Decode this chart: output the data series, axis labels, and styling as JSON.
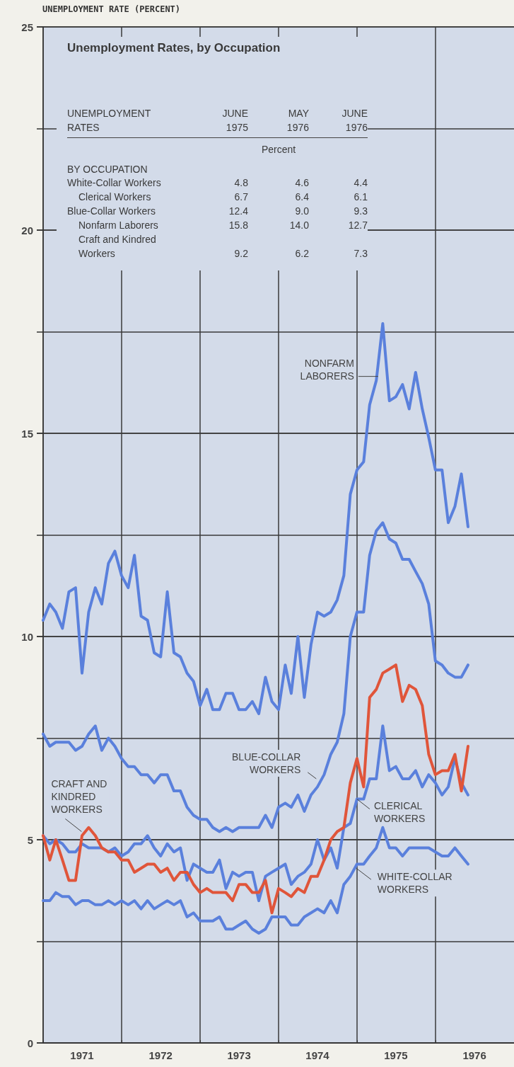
{
  "chart_data": [
    {
      "type": "line",
      "title": "Unemployment Rates, by Occupation",
      "ylabel": "UNEMPLOYMENT RATE (PERCENT)",
      "x": [
        "1971-01",
        "1971-02",
        "1971-03",
        "1971-04",
        "1971-05",
        "1971-06",
        "1971-07",
        "1971-08",
        "1971-09",
        "1971-10",
        "1971-11",
        "1971-12",
        "1972-01",
        "1972-02",
        "1972-03",
        "1972-04",
        "1972-05",
        "1972-06",
        "1972-07",
        "1972-08",
        "1972-09",
        "1972-10",
        "1972-11",
        "1972-12",
        "1973-01",
        "1973-02",
        "1973-03",
        "1973-04",
        "1973-05",
        "1973-06",
        "1973-07",
        "1973-08",
        "1973-09",
        "1973-10",
        "1973-11",
        "1973-12",
        "1974-01",
        "1974-02",
        "1974-03",
        "1974-04",
        "1974-05",
        "1974-06",
        "1974-07",
        "1974-08",
        "1974-09",
        "1974-10",
        "1974-11",
        "1974-12",
        "1975-01",
        "1975-02",
        "1975-03",
        "1975-04",
        "1975-05",
        "1975-06",
        "1975-07",
        "1975-08",
        "1975-09",
        "1975-10",
        "1975-11",
        "1975-12",
        "1976-01",
        "1976-02",
        "1976-03",
        "1976-04",
        "1976-05",
        "1976-06"
      ],
      "xlim": [
        "1971",
        "1977"
      ],
      "xticks": [
        {
          "value": "1971",
          "label": null
        },
        {
          "value": "1971-07",
          "label": "1971"
        },
        {
          "value": "1972",
          "label": null
        },
        {
          "value": "1972-07",
          "label": "1972"
        },
        {
          "value": "1973",
          "label": null
        },
        {
          "value": "1973-07",
          "label": "1973"
        },
        {
          "value": "1974",
          "label": null
        },
        {
          "value": "1974-07",
          "label": "1974"
        },
        {
          "value": "1975",
          "label": null
        },
        {
          "value": "1975-07",
          "label": "1975"
        },
        {
          "value": "1976",
          "label": null
        },
        {
          "value": "1976-07",
          "label": "1976"
        }
      ],
      "ylim": [
        0,
        25
      ],
      "yticks": [
        0,
        {
          "value": 2.5,
          "label": null
        },
        5,
        {
          "value": 7.5,
          "label": null
        },
        10,
        {
          "value": 12.5,
          "label": null
        },
        15,
        {
          "value": 17.5,
          "label": null
        },
        20,
        {
          "value": 22.5,
          "label": null
        },
        25
      ],
      "grid": true,
      "marker": "none",
      "line_style": "solid",
      "series": [
        {
          "name": "NONFARM\nLABORERS",
          "color": "#5a80dc",
          "values": [
            10.4,
            10.8,
            10.6,
            10.2,
            11.1,
            11.2,
            9.1,
            10.6,
            11.2,
            10.8,
            11.8,
            12.1,
            11.5,
            11.2,
            12.0,
            10.5,
            10.4,
            9.6,
            9.5,
            11.1,
            9.6,
            9.5,
            9.1,
            8.9,
            8.3,
            8.7,
            8.2,
            8.2,
            8.6,
            8.6,
            8.2,
            8.2,
            8.4,
            8.1,
            9.0,
            8.4,
            8.2,
            9.3,
            8.6,
            10.0,
            8.5,
            9.8,
            10.6,
            10.5,
            10.6,
            10.9,
            11.5,
            13.5,
            14.1,
            14.3,
            15.7,
            16.3,
            17.7,
            15.8,
            15.9,
            16.2,
            15.6,
            16.5,
            15.6,
            14.9,
            14.1,
            14.1,
            12.8,
            13.2,
            14.0,
            12.7
          ]
        },
        {
          "name": "BLUE-COLLAR\nWORKERS",
          "color": "#5a80dc",
          "values": [
            7.6,
            7.3,
            7.4,
            7.4,
            7.4,
            7.2,
            7.3,
            7.6,
            7.8,
            7.2,
            7.5,
            7.3,
            7.0,
            6.8,
            6.8,
            6.6,
            6.6,
            6.4,
            6.6,
            6.6,
            6.2,
            6.2,
            5.8,
            5.6,
            5.5,
            5.5,
            5.3,
            5.2,
            5.3,
            5.2,
            5.3,
            5.3,
            5.3,
            5.3,
            5.6,
            5.3,
            5.8,
            5.9,
            5.8,
            6.1,
            5.7,
            6.1,
            6.3,
            6.6,
            7.1,
            7.4,
            8.1,
            10.0,
            10.6,
            10.6,
            12.0,
            12.6,
            12.8,
            12.4,
            12.3,
            11.9,
            11.9,
            11.6,
            11.3,
            10.8,
            9.4,
            9.3,
            9.1,
            9.0,
            9.0,
            9.3
          ]
        },
        {
          "name": "CLERICAL\nWORKERS",
          "color": "#5a80dc",
          "values": [
            5.1,
            4.9,
            5.0,
            4.9,
            4.7,
            4.7,
            4.9,
            4.8,
            4.8,
            4.8,
            4.7,
            4.8,
            4.6,
            4.7,
            4.9,
            4.9,
            5.1,
            4.8,
            4.6,
            4.9,
            4.7,
            4.8,
            4.0,
            4.4,
            4.3,
            4.2,
            4.2,
            4.5,
            3.8,
            4.2,
            4.1,
            4.2,
            4.2,
            3.5,
            4.1,
            4.2,
            4.3,
            4.4,
            3.9,
            4.1,
            4.2,
            4.4,
            5.0,
            4.5,
            4.8,
            4.3,
            5.3,
            5.4,
            6.0,
            6.0,
            6.5,
            6.5,
            7.8,
            6.7,
            6.8,
            6.5,
            6.5,
            6.7,
            6.3,
            6.6,
            6.4,
            6.1,
            6.3,
            7.0,
            6.4,
            6.1
          ]
        },
        {
          "name": "WHITE-COLLAR\nWORKERS",
          "color": "#5a80dc",
          "values": [
            3.5,
            3.5,
            3.7,
            3.6,
            3.6,
            3.4,
            3.5,
            3.5,
            3.4,
            3.4,
            3.5,
            3.4,
            3.5,
            3.4,
            3.5,
            3.3,
            3.5,
            3.3,
            3.4,
            3.5,
            3.4,
            3.5,
            3.1,
            3.2,
            3.0,
            3.0,
            3.0,
            3.1,
            2.8,
            2.8,
            2.9,
            3.0,
            2.8,
            2.7,
            2.8,
            3.1,
            3.1,
            3.1,
            2.9,
            2.9,
            3.1,
            3.2,
            3.3,
            3.2,
            3.5,
            3.2,
            3.9,
            4.1,
            4.4,
            4.4,
            4.6,
            4.8,
            5.3,
            4.8,
            4.8,
            4.6,
            4.8,
            4.8,
            4.8,
            4.8,
            4.7,
            4.6,
            4.6,
            4.8,
            4.6,
            4.4
          ]
        },
        {
          "name": "CRAFT AND\nKINDRED\nWORKERS",
          "color": "#e0553a",
          "values": [
            5.1,
            4.5,
            5.0,
            4.5,
            4.0,
            4.0,
            5.1,
            5.3,
            5.1,
            4.8,
            4.7,
            4.7,
            4.5,
            4.5,
            4.2,
            4.3,
            4.4,
            4.4,
            4.2,
            4.3,
            4.0,
            4.2,
            4.2,
            3.9,
            3.7,
            3.8,
            3.7,
            3.7,
            3.7,
            3.5,
            3.9,
            3.9,
            3.7,
            3.7,
            4.0,
            3.2,
            3.8,
            3.7,
            3.6,
            3.8,
            3.7,
            4.1,
            4.1,
            4.5,
            5.0,
            5.2,
            5.3,
            6.4,
            7.0,
            6.3,
            8.5,
            8.7,
            9.1,
            9.2,
            9.3,
            8.4,
            8.8,
            8.7,
            8.3,
            7.1,
            6.6,
            6.7,
            6.7,
            7.1,
            6.2,
            7.3
          ]
        }
      ]
    },
    {
      "type": "other",
      "annotations": [
        "UNEMPLOYMENT\nRATES",
        "Percent",
        "BY OCCUPATION"
      ],
      "categories": [
        "White-Collar Workers",
        "Clerical Workers",
        "Blue-Collar Workers",
        "Nonfarm Laborers",
        "Craft and Kindred\nWorkers"
      ],
      "series": [
        {
          "name": "JUNE\n1975",
          "values": [
            4.8,
            6.7,
            12.4,
            15.8,
            9.2
          ],
          "value_labels": [
            "4.8",
            "6.7",
            "12.4",
            "15.8",
            "9.2"
          ]
        },
        {
          "name": "MAY\n1976",
          "values": [
            4.6,
            6.4,
            9.0,
            14.0,
            6.2
          ],
          "value_labels": [
            "4.6",
            "6.4",
            "9.0",
            "14.0",
            "6.2"
          ]
        },
        {
          "name": "JUNE\n1976",
          "values": [
            4.4,
            6.1,
            9.3,
            12.7,
            7.3
          ],
          "value_labels": [
            "4.4",
            "6.1",
            "9.3",
            "12.7",
            "7.3"
          ]
        }
      ]
    }
  ]
}
